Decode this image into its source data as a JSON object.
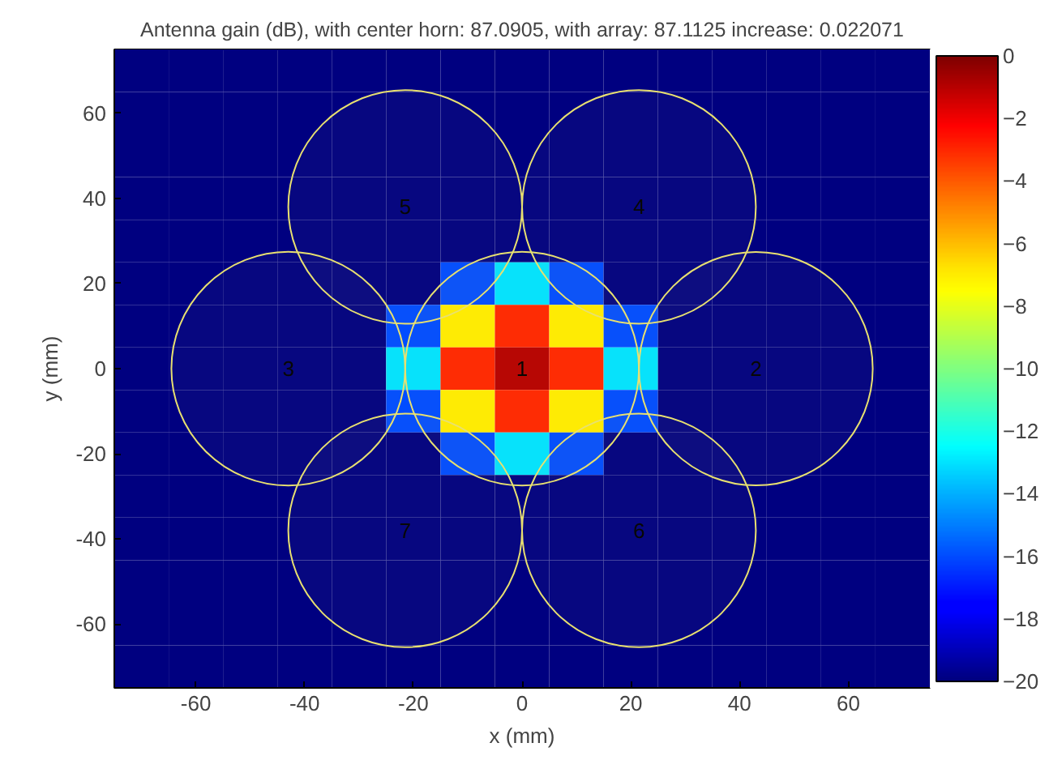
{
  "chart_data": {
    "type": "heatmap",
    "title": "Antenna gain (dB), with center horn: 87.0905, with array: 87.1125 increase: 0.022071",
    "xlabel": "x (mm)",
    "ylabel": "y (mm)",
    "cells": [
      [
        -20,
        -20,
        -20,
        -20,
        -20,
        -20,
        -20,
        -20,
        -20,
        -20,
        -20,
        -20,
        -20,
        -20,
        -20
      ],
      [
        -20,
        -20,
        -20,
        -20,
        -20,
        -20,
        -20,
        -20,
        -20,
        -20,
        -20,
        -20,
        -20,
        -20,
        -20
      ],
      [
        -20,
        -20,
        -20,
        -20,
        -20,
        -20,
        -20,
        -20,
        -20,
        -20,
        -20,
        -20,
        -20,
        -20,
        -20
      ],
      [
        -20,
        -20,
        -20,
        -20,
        -20,
        -20,
        -20,
        -20,
        -20,
        -20,
        -20,
        -20,
        -20,
        -20,
        -20
      ],
      [
        -20,
        -20,
        -20,
        -20,
        -20,
        -20,
        -20,
        -20,
        -20,
        -20,
        -20,
        -20,
        -20,
        -20,
        -20
      ],
      [
        -20,
        -20,
        -20,
        -20,
        -20,
        -20,
        -16,
        -13,
        -16,
        -20,
        -20,
        -20,
        -20,
        -20,
        -20
      ],
      [
        -20,
        -20,
        -20,
        -20,
        -20,
        -16,
        -7,
        -3,
        -7,
        -16,
        -20,
        -20,
        -20,
        -20,
        -20
      ],
      [
        -20,
        -20,
        -20,
        -20,
        -20,
        -13,
        -3,
        -1,
        -3,
        -13,
        -20,
        -20,
        -20,
        -20,
        -20
      ],
      [
        -20,
        -20,
        -20,
        -20,
        -20,
        -16,
        -7,
        -3,
        -7,
        -16,
        -20,
        -20,
        -20,
        -20,
        -20
      ],
      [
        -20,
        -20,
        -20,
        -20,
        -20,
        -20,
        -16,
        -13,
        -16,
        -20,
        -20,
        -20,
        -20,
        -20,
        -20
      ],
      [
        -20,
        -20,
        -20,
        -20,
        -20,
        -20,
        -20,
        -20,
        -20,
        -20,
        -20,
        -20,
        -20,
        -20,
        -20
      ],
      [
        -20,
        -20,
        -20,
        -20,
        -20,
        -20,
        -20,
        -20,
        -20,
        -20,
        -20,
        -20,
        -20,
        -20,
        -20
      ],
      [
        -20,
        -20,
        -20,
        -20,
        -20,
        -20,
        -20,
        -20,
        -20,
        -20,
        -20,
        -20,
        -20,
        -20,
        -20
      ],
      [
        -20,
        -20,
        -20,
        -20,
        -20,
        -20,
        -20,
        -20,
        -20,
        -20,
        -20,
        -20,
        -20,
        -20,
        -20
      ],
      [
        -20,
        -20,
        -20,
        -20,
        -20,
        -20,
        -20,
        -20,
        -20,
        -20,
        -20,
        -20,
        -20,
        -20,
        -20
      ]
    ],
    "clim": [
      -20,
      0
    ],
    "cticks": [
      -20,
      -18,
      -16,
      -14,
      -12,
      -10,
      -8,
      -6,
      -4,
      -2,
      0
    ],
    "xlim": [
      -75,
      75
    ],
    "ylim": [
      -75,
      75
    ],
    "xticks": [
      -60,
      -40,
      -20,
      0,
      20,
      40,
      60
    ],
    "yticks": [
      -60,
      -40,
      -20,
      0,
      20,
      40,
      60
    ],
    "series": [
      {
        "type": "bubble",
        "color": "#e8e070",
        "x": [
          0,
          43,
          -43,
          21.5,
          -21.5,
          21.5,
          -21.5
        ],
        "values": [
          0,
          0,
          0,
          38,
          38,
          -38,
          -38
        ],
        "sizes": [
          1,
          1,
          1,
          1,
          1,
          1,
          1
        ]
      }
    ],
    "annotations": [
      "1",
      "2",
      "3",
      "4",
      "5",
      "6",
      "7"
    ],
    "grid": false
  }
}
